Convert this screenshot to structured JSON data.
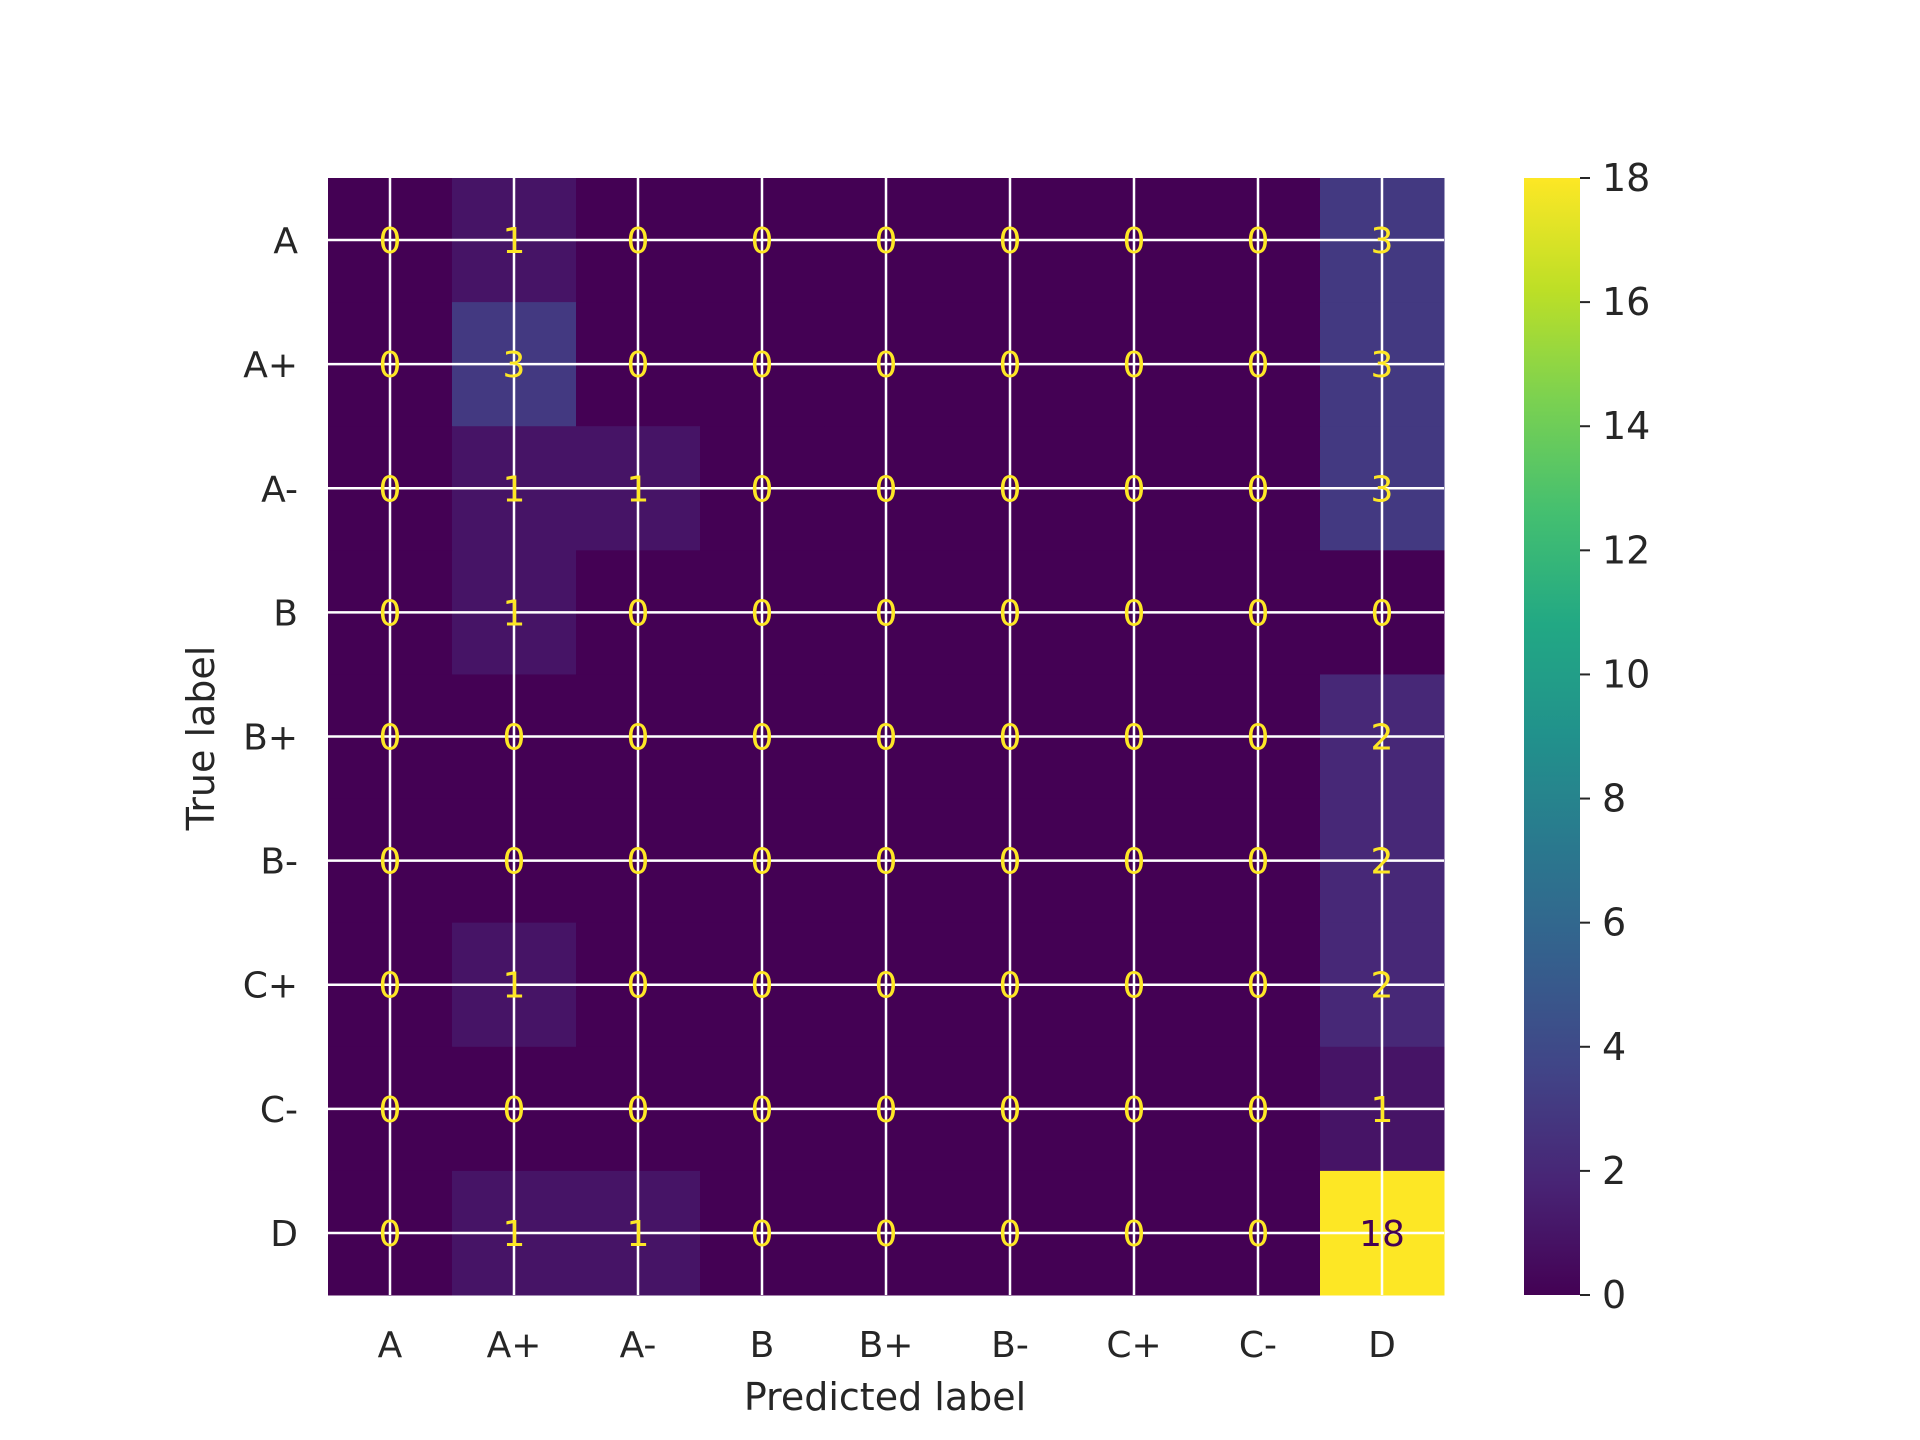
{
  "chart_data": {
    "type": "heatmap",
    "title": "",
    "xlabel": "Predicted label",
    "ylabel": "True label",
    "x_categories": [
      "A",
      "A+",
      "A-",
      "B",
      "B+",
      "B-",
      "C+",
      "C-",
      "D"
    ],
    "y_categories": [
      "A",
      "A+",
      "A-",
      "B",
      "B+",
      "B-",
      "C+",
      "C-",
      "D"
    ],
    "values": [
      [
        0,
        1,
        0,
        0,
        0,
        0,
        0,
        0,
        3
      ],
      [
        0,
        3,
        0,
        0,
        0,
        0,
        0,
        0,
        3
      ],
      [
        0,
        1,
        1,
        0,
        0,
        0,
        0,
        0,
        3
      ],
      [
        0,
        1,
        0,
        0,
        0,
        0,
        0,
        0,
        0
      ],
      [
        0,
        0,
        0,
        0,
        0,
        0,
        0,
        0,
        2
      ],
      [
        0,
        0,
        0,
        0,
        0,
        0,
        0,
        0,
        2
      ],
      [
        0,
        1,
        0,
        0,
        0,
        0,
        0,
        0,
        2
      ],
      [
        0,
        0,
        0,
        0,
        0,
        0,
        0,
        0,
        1
      ],
      [
        0,
        1,
        1,
        0,
        0,
        0,
        0,
        0,
        18
      ]
    ],
    "colormap": "viridis",
    "value_range": [
      0,
      18
    ],
    "colorbar_ticks": [
      0,
      2,
      4,
      6,
      8,
      10,
      12,
      14,
      16,
      18
    ],
    "grid": true,
    "colorbar_placement": "right"
  }
}
